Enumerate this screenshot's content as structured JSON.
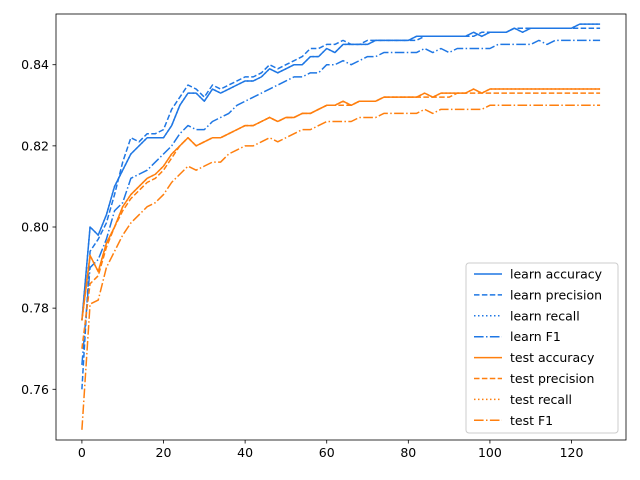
{
  "chart_data": {
    "type": "line",
    "title": "",
    "xlabel": "",
    "ylabel": "",
    "xlim": [
      -6.35,
      133.35
    ],
    "ylim": [
      0.7475,
      0.8525
    ],
    "x_ticks": [
      0,
      20,
      40,
      60,
      80,
      100,
      120
    ],
    "x_tick_labels": [
      "0",
      "20",
      "40",
      "60",
      "80",
      "100",
      "120"
    ],
    "y_ticks": [
      0.76,
      0.78,
      0.8,
      0.82,
      0.84
    ],
    "y_tick_labels": [
      "0.76",
      "0.78",
      "0.80",
      "0.82",
      "0.84"
    ],
    "grid": false,
    "legend_position": "lower-right",
    "x": [
      0,
      2,
      4,
      6,
      8,
      10,
      12,
      14,
      16,
      18,
      20,
      22,
      24,
      26,
      28,
      30,
      32,
      34,
      36,
      38,
      40,
      42,
      44,
      46,
      48,
      50,
      52,
      54,
      56,
      58,
      60,
      62,
      64,
      66,
      68,
      70,
      72,
      74,
      76,
      78,
      80,
      82,
      84,
      86,
      88,
      90,
      92,
      94,
      96,
      98,
      100,
      102,
      104,
      106,
      108,
      110,
      112,
      114,
      116,
      118,
      120,
      122,
      124,
      126,
      127
    ],
    "series": [
      {
        "name": "learn accuracy",
        "color": "#1f77e4",
        "dash": "solid",
        "values": [
          0.777,
          0.8,
          0.798,
          0.803,
          0.81,
          0.814,
          0.818,
          0.82,
          0.822,
          0.822,
          0.822,
          0.825,
          0.83,
          0.833,
          0.833,
          0.831,
          0.834,
          0.833,
          0.834,
          0.835,
          0.836,
          0.836,
          0.837,
          0.839,
          0.838,
          0.839,
          0.84,
          0.84,
          0.842,
          0.842,
          0.844,
          0.843,
          0.845,
          0.845,
          0.845,
          0.845,
          0.846,
          0.846,
          0.846,
          0.846,
          0.846,
          0.847,
          0.847,
          0.847,
          0.847,
          0.847,
          0.847,
          0.847,
          0.848,
          0.847,
          0.848,
          0.848,
          0.848,
          0.849,
          0.848,
          0.849,
          0.849,
          0.849,
          0.849,
          0.849,
          0.849,
          0.85,
          0.85,
          0.85,
          0.85
        ]
      },
      {
        "name": "learn precision",
        "color": "#1f77e4",
        "dash": "dashed",
        "values": [
          0.76,
          0.794,
          0.797,
          0.801,
          0.808,
          0.816,
          0.822,
          0.821,
          0.823,
          0.823,
          0.824,
          0.829,
          0.832,
          0.835,
          0.834,
          0.832,
          0.835,
          0.834,
          0.835,
          0.836,
          0.837,
          0.837,
          0.838,
          0.84,
          0.839,
          0.84,
          0.841,
          0.842,
          0.844,
          0.844,
          0.845,
          0.845,
          0.846,
          0.845,
          0.845,
          0.846,
          0.846,
          0.846,
          0.846,
          0.846,
          0.846,
          0.846,
          0.847,
          0.847,
          0.847,
          0.847,
          0.847,
          0.847,
          0.847,
          0.848,
          0.848,
          0.848,
          0.848,
          0.849,
          0.849,
          0.849,
          0.849,
          0.849,
          0.849,
          0.849,
          0.849,
          0.849,
          0.849,
          0.849,
          0.849
        ]
      },
      {
        "name": "learn recall",
        "color": "#1f77e4",
        "dash": "dotted",
        "values": [
          0.777,
          0.8,
          0.798,
          0.803,
          0.81,
          0.814,
          0.818,
          0.82,
          0.822,
          0.822,
          0.822,
          0.825,
          0.83,
          0.833,
          0.833,
          0.831,
          0.834,
          0.833,
          0.834,
          0.835,
          0.836,
          0.836,
          0.837,
          0.839,
          0.838,
          0.839,
          0.84,
          0.84,
          0.842,
          0.842,
          0.844,
          0.843,
          0.845,
          0.845,
          0.845,
          0.845,
          0.846,
          0.846,
          0.846,
          0.846,
          0.846,
          0.847,
          0.847,
          0.847,
          0.847,
          0.847,
          0.847,
          0.847,
          0.848,
          0.847,
          0.848,
          0.848,
          0.848,
          0.849,
          0.848,
          0.849,
          0.849,
          0.849,
          0.849,
          0.849,
          0.849,
          0.85,
          0.85,
          0.85,
          0.85
        ]
      },
      {
        "name": "learn F1",
        "color": "#1f77e4",
        "dash": "dashdot",
        "values": [
          0.766,
          0.79,
          0.792,
          0.797,
          0.804,
          0.806,
          0.812,
          0.813,
          0.814,
          0.816,
          0.818,
          0.82,
          0.823,
          0.825,
          0.824,
          0.824,
          0.826,
          0.827,
          0.828,
          0.83,
          0.831,
          0.832,
          0.833,
          0.834,
          0.835,
          0.836,
          0.837,
          0.837,
          0.838,
          0.838,
          0.84,
          0.84,
          0.841,
          0.84,
          0.841,
          0.842,
          0.842,
          0.843,
          0.843,
          0.843,
          0.843,
          0.843,
          0.844,
          0.843,
          0.844,
          0.843,
          0.844,
          0.844,
          0.844,
          0.844,
          0.844,
          0.845,
          0.845,
          0.845,
          0.845,
          0.845,
          0.846,
          0.845,
          0.846,
          0.846,
          0.846,
          0.846,
          0.846,
          0.846,
          0.846
        ]
      },
      {
        "name": "test accuracy",
        "color": "#ff7f0e",
        "dash": "solid",
        "values": [
          0.777,
          0.793,
          0.789,
          0.796,
          0.8,
          0.805,
          0.808,
          0.81,
          0.812,
          0.813,
          0.815,
          0.818,
          0.82,
          0.822,
          0.82,
          0.821,
          0.822,
          0.822,
          0.823,
          0.824,
          0.825,
          0.825,
          0.826,
          0.827,
          0.826,
          0.827,
          0.827,
          0.828,
          0.828,
          0.829,
          0.83,
          0.83,
          0.831,
          0.83,
          0.831,
          0.831,
          0.831,
          0.832,
          0.832,
          0.832,
          0.832,
          0.832,
          0.833,
          0.832,
          0.833,
          0.833,
          0.833,
          0.833,
          0.834,
          0.833,
          0.834,
          0.834,
          0.834,
          0.834,
          0.834,
          0.834,
          0.834,
          0.834,
          0.834,
          0.834,
          0.834,
          0.834,
          0.834,
          0.834,
          0.834
        ]
      },
      {
        "name": "test precision",
        "color": "#ff7f0e",
        "dash": "dashed",
        "values": [
          0.77,
          0.786,
          0.788,
          0.795,
          0.8,
          0.804,
          0.807,
          0.809,
          0.811,
          0.812,
          0.814,
          0.817,
          0.82,
          0.822,
          0.82,
          0.821,
          0.822,
          0.822,
          0.823,
          0.824,
          0.825,
          0.825,
          0.826,
          0.827,
          0.826,
          0.827,
          0.827,
          0.828,
          0.828,
          0.829,
          0.83,
          0.83,
          0.83,
          0.83,
          0.831,
          0.831,
          0.831,
          0.832,
          0.832,
          0.832,
          0.832,
          0.832,
          0.832,
          0.832,
          0.832,
          0.832,
          0.833,
          0.833,
          0.833,
          0.833,
          0.833,
          0.833,
          0.833,
          0.833,
          0.833,
          0.833,
          0.833,
          0.833,
          0.833,
          0.833,
          0.833,
          0.833,
          0.833,
          0.833,
          0.833
        ]
      },
      {
        "name": "test recall",
        "color": "#ff7f0e",
        "dash": "dotted",
        "values": [
          0.777,
          0.793,
          0.789,
          0.796,
          0.8,
          0.805,
          0.808,
          0.81,
          0.812,
          0.813,
          0.815,
          0.818,
          0.82,
          0.822,
          0.82,
          0.821,
          0.822,
          0.822,
          0.823,
          0.824,
          0.825,
          0.825,
          0.826,
          0.827,
          0.826,
          0.827,
          0.827,
          0.828,
          0.828,
          0.829,
          0.83,
          0.83,
          0.831,
          0.83,
          0.831,
          0.831,
          0.831,
          0.832,
          0.832,
          0.832,
          0.832,
          0.832,
          0.833,
          0.832,
          0.833,
          0.833,
          0.833,
          0.833,
          0.834,
          0.833,
          0.834,
          0.834,
          0.834,
          0.834,
          0.834,
          0.834,
          0.834,
          0.834,
          0.834,
          0.834,
          0.834,
          0.834,
          0.834,
          0.834,
          0.834
        ]
      },
      {
        "name": "test F1",
        "color": "#ff7f0e",
        "dash": "dashdot",
        "values": [
          0.75,
          0.781,
          0.782,
          0.79,
          0.794,
          0.798,
          0.801,
          0.803,
          0.805,
          0.806,
          0.808,
          0.811,
          0.813,
          0.815,
          0.814,
          0.815,
          0.816,
          0.816,
          0.818,
          0.819,
          0.82,
          0.82,
          0.821,
          0.822,
          0.821,
          0.822,
          0.823,
          0.824,
          0.824,
          0.825,
          0.826,
          0.826,
          0.826,
          0.826,
          0.827,
          0.827,
          0.827,
          0.828,
          0.828,
          0.828,
          0.828,
          0.828,
          0.829,
          0.828,
          0.829,
          0.829,
          0.829,
          0.829,
          0.829,
          0.829,
          0.83,
          0.83,
          0.83,
          0.83,
          0.83,
          0.83,
          0.83,
          0.83,
          0.83,
          0.83,
          0.83,
          0.83,
          0.83,
          0.83,
          0.83
        ]
      }
    ]
  }
}
